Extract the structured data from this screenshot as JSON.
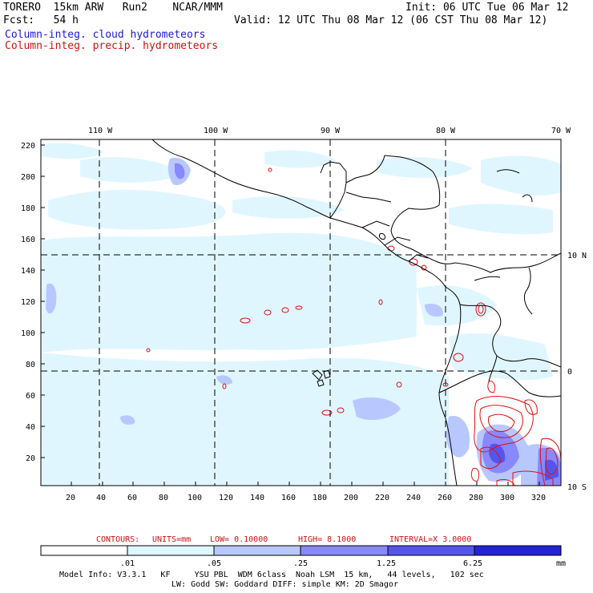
{
  "header": {
    "left_line1": "TORERO  15km ARW   Run2    NCAR/MMM",
    "left_line2": "Fcst:   54 h",
    "right_line1": "Init: 06 UTC Tue 06 Mar 12",
    "right_line2": "Valid: 12 UTC Thu 08 Mar 12 (06 CST Thu 08 Mar 12)",
    "legend_cloud": "Column-integ. cloud hydrometeors",
    "legend_precip": "Column-integ. precip. hydrometeors"
  },
  "map": {
    "lon_labels": [
      "110 W",
      "100 W",
      "90 W",
      "80 W",
      "70 W"
    ],
    "lat_labels": [
      "10 N",
      "0",
      "10 S"
    ],
    "y_ticks": [
      "220",
      "200",
      "180",
      "160",
      "140",
      "120",
      "100",
      "80",
      "60",
      "40",
      "20"
    ],
    "x_ticks": [
      "20",
      "40",
      "60",
      "80",
      "100",
      "120",
      "140",
      "160",
      "180",
      "200",
      "220",
      "240",
      "260",
      "280",
      "300",
      "320"
    ]
  },
  "contour_info": {
    "contours": "CONTOURS:",
    "units": "UNITS=mm",
    "low": "LOW= 0.10000",
    "high": "HIGH=  8.1000",
    "interval": "INTERVAL=X  3.0000"
  },
  "colorbar": {
    "labels": [
      ".01",
      ".05",
      ".25",
      "1.25",
      "6.25"
    ],
    "unit": "mm",
    "colors": [
      "#ffffff",
      "#e0f6ff",
      "#b8c8ff",
      "#8888ff",
      "#5555ee",
      "#2222dd"
    ]
  },
  "footer": {
    "line1": "Model Info: V3.3.1   KF     YSU PBL  WDM 6class  Noah LSM  15 km,   44 levels,   102 sec",
    "line2": "LW: Godd SW: Goddard DIFF: simple KM: 2D Smagor"
  }
}
